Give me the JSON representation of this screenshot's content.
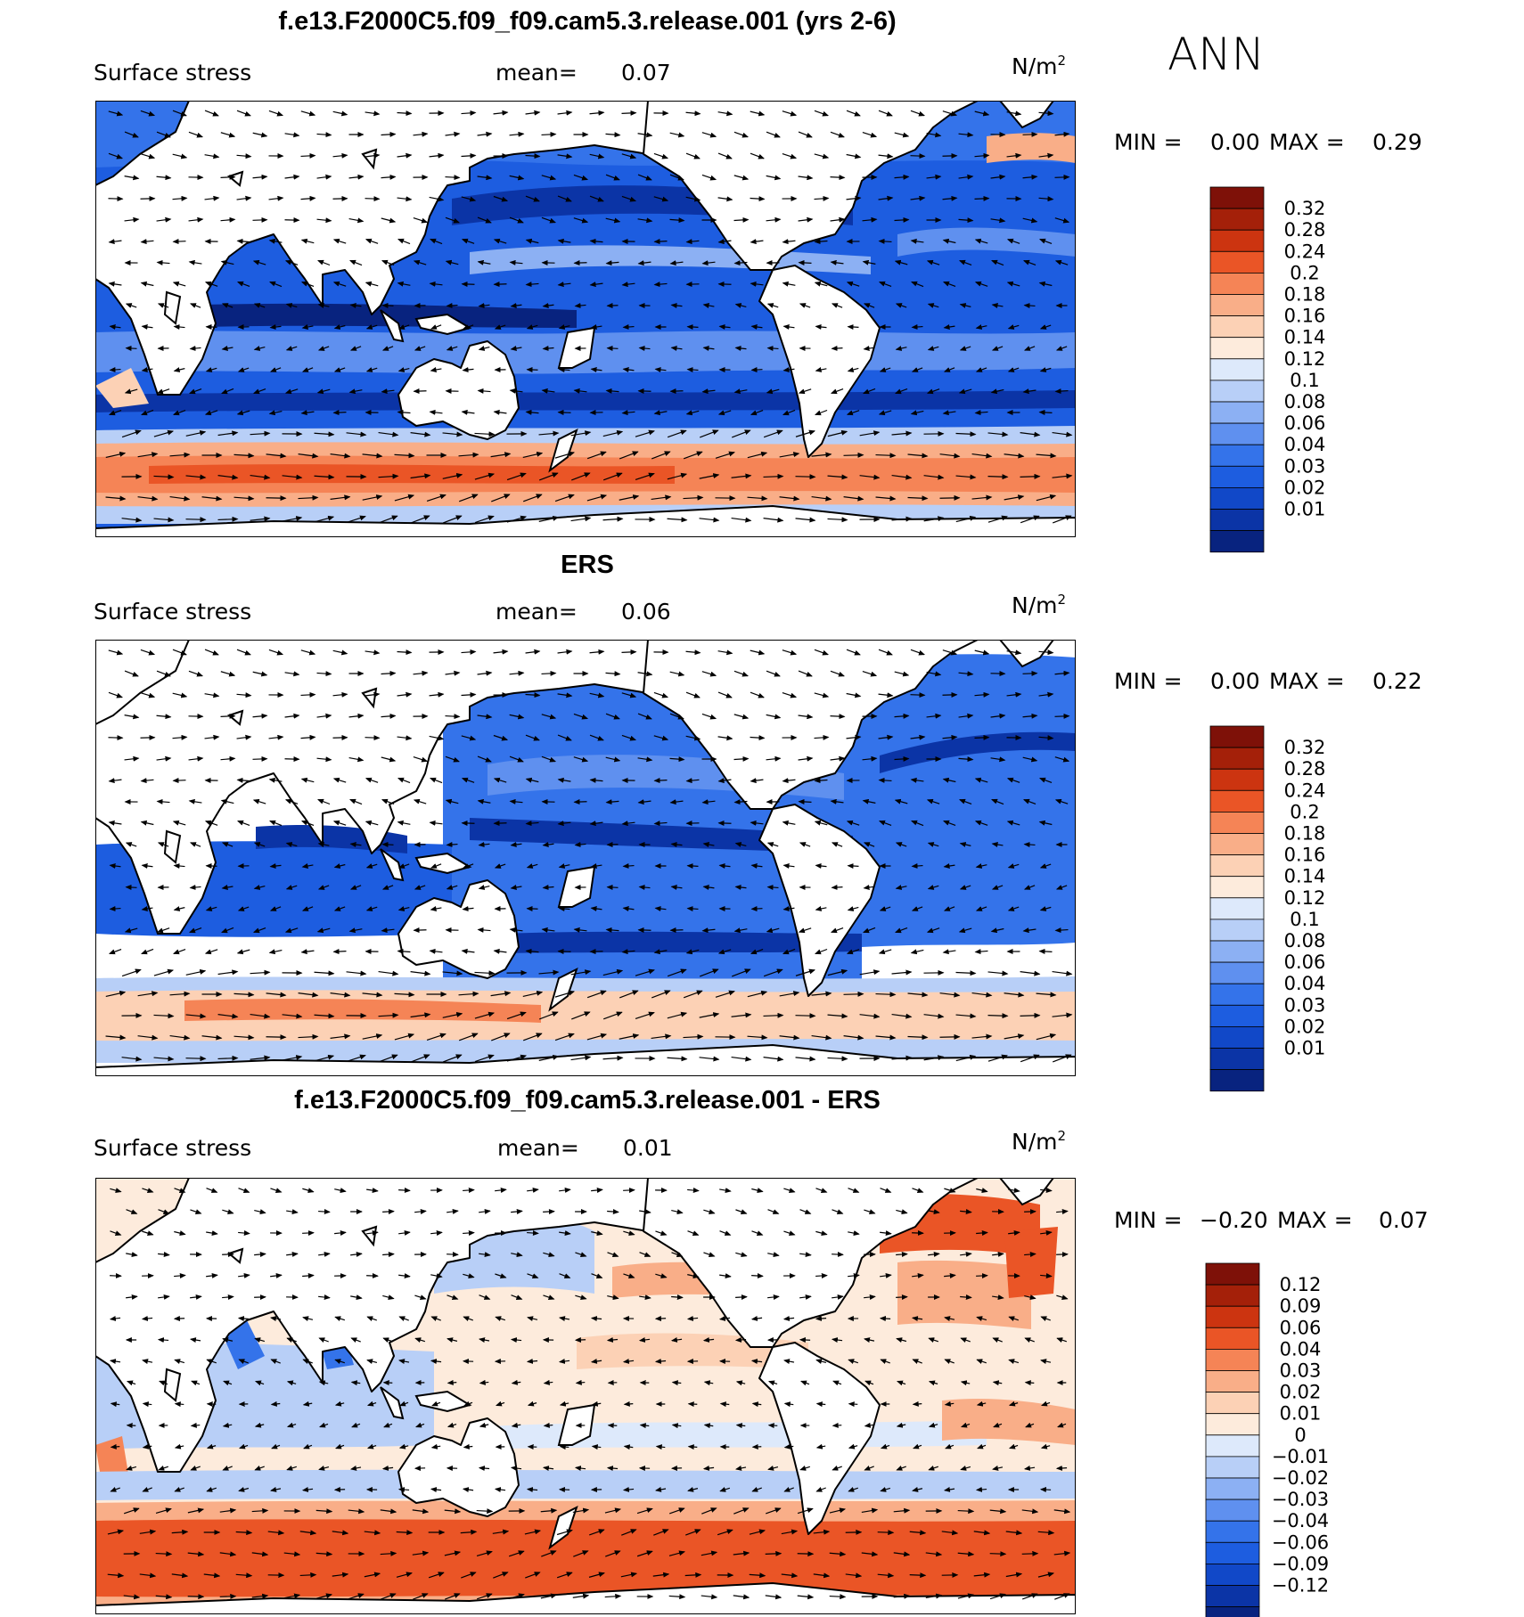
{
  "season": "ANN",
  "palettes": {
    "abs": [
      "#08237f",
      "#0b34a6",
      "#1148c8",
      "#1d5de0",
      "#3473ea",
      "#5f90ef",
      "#8cb0f3",
      "#b8cff7",
      "#dde9fb",
      "#fdebdc",
      "#fcd1b5",
      "#f9ae88",
      "#f58456",
      "#ea5526",
      "#cc3410",
      "#a42009",
      "#7e1108"
    ],
    "diff": [
      "#08237f",
      "#0b34a6",
      "#1148c8",
      "#1d5de0",
      "#3473ea",
      "#5f90ef",
      "#8cb0f3",
      "#b8cff7",
      "#dde9fb",
      "#fdebdc",
      "#fcd1b5",
      "#f9ae88",
      "#f58456",
      "#ea5526",
      "#cc3410",
      "#a42009",
      "#7e1108"
    ]
  },
  "panels": [
    {
      "title": "f.e13.F2000C5.f09_f09.cam5.3.release.001 (yrs 2-6)",
      "variable": "Surface stress",
      "mean_label": "mean=",
      "mean_value": "0.07",
      "units": "N/m",
      "units_exp": "2",
      "min_label": "MIN =",
      "min_value": "0.00",
      "max_label": "MAX =",
      "max_value": "0.29",
      "palette": "abs",
      "colorbar_labels": [
        "0.32",
        "0.28",
        "0.24",
        "0.2",
        "0.18",
        "0.16",
        "0.14",
        "0.12",
        "0.1",
        "0.08",
        "0.06",
        "0.04",
        "0.03",
        "0.02",
        "0.01"
      ]
    },
    {
      "title": "ERS",
      "variable": "Surface stress",
      "mean_label": "mean=",
      "mean_value": "0.06",
      "units": "N/m",
      "units_exp": "2",
      "min_label": "MIN =",
      "min_value": "0.00",
      "max_label": "MAX =",
      "max_value": "0.22",
      "palette": "abs",
      "colorbar_labels": [
        "0.32",
        "0.28",
        "0.24",
        "0.2",
        "0.18",
        "0.16",
        "0.14",
        "0.12",
        "0.1",
        "0.08",
        "0.06",
        "0.04",
        "0.03",
        "0.02",
        "0.01"
      ]
    },
    {
      "title": "f.e13.F2000C5.f09_f09.cam5.3.release.001 - ERS",
      "variable": "Surface stress",
      "mean_label": "mean=",
      "mean_value": "0.01",
      "units": "N/m",
      "units_exp": "2",
      "min_label": "MIN =",
      "min_value": "−0.20",
      "max_label": "MAX =",
      "max_value": "0.07",
      "palette": "diff",
      "colorbar_labels": [
        "0.12",
        "0.09",
        "0.06",
        "0.04",
        "0.03",
        "0.02",
        "0.01",
        "0",
        "−0.01",
        "−0.02",
        "−0.03",
        "−0.04",
        "−0.06",
        "−0.09",
        "−0.12"
      ]
    }
  ]
}
